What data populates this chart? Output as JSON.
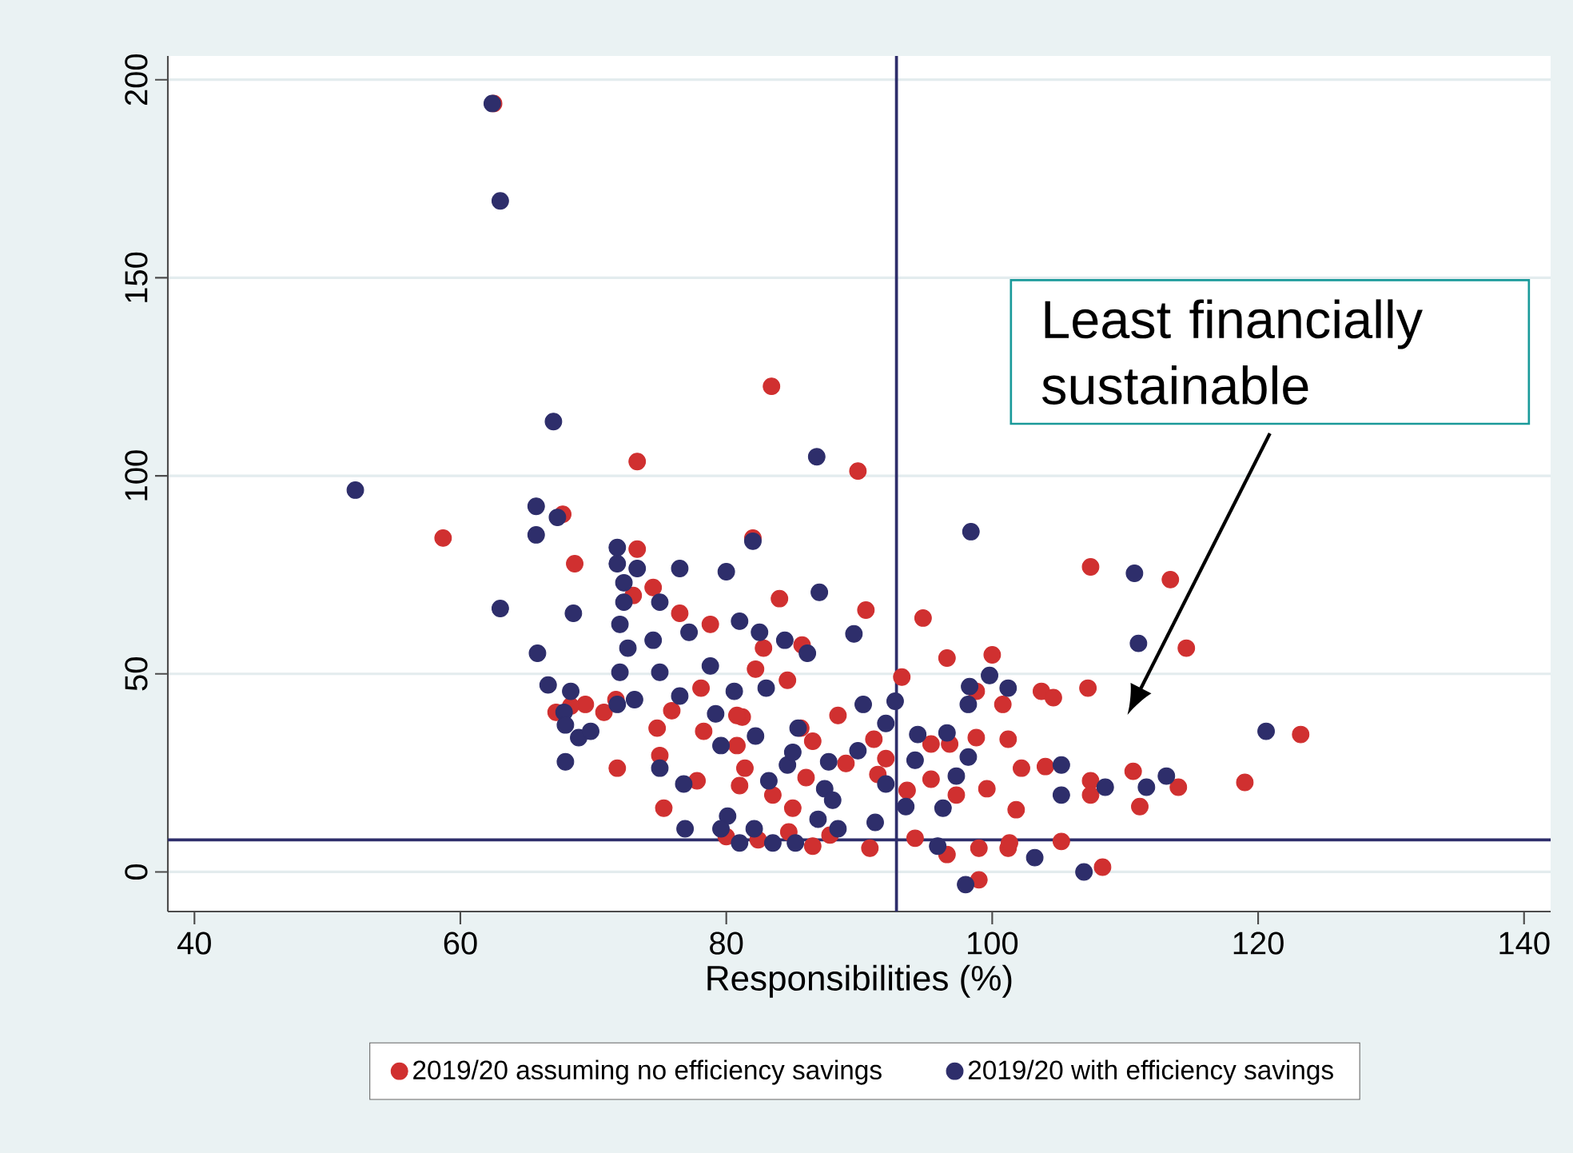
{
  "chart_data": {
    "type": "scatter",
    "xlabel": "Responsibilities (%)",
    "annotations": [
      "Least financially sustainable"
    ],
    "xlim": [
      38,
      142
    ],
    "ylim": [
      -10,
      206
    ],
    "xticks": [
      40,
      60,
      80,
      100,
      120,
      140
    ],
    "yticks": [
      0,
      50,
      100,
      150,
      200
    ],
    "grid": "y",
    "legend": "bottom",
    "ref_lines": [
      {
        "axis": "x",
        "value": 92.8,
        "color": "#2e2e6b"
      },
      {
        "axis": "y",
        "value": 8.1,
        "color": "#2e2e6b"
      }
    ],
    "series": [
      {
        "name": "2019/20 assuming no efficiency savings",
        "color": "#d03030",
        "x": [
          62.5,
          83.4,
          73.3,
          89.9,
          58.7,
          67.7,
          82,
          73.3,
          107.4,
          113.4,
          114.6,
          94.8,
          90.5,
          68.6,
          74.5,
          73,
          76.5,
          78.8,
          84,
          82.8,
          85.7,
          96.6,
          93.2,
          98.8,
          103.7,
          107.2,
          100.8,
          104.6,
          78.1,
          82.2,
          84.6,
          81.2,
          75.9,
          71.7,
          69.4,
          70.8,
          68.3,
          67.2,
          74.8,
          78.3,
          80.8,
          85.6,
          88.4,
          91.1,
          92,
          95.4,
          96.8,
          98.8,
          102.2,
          101.2,
          104,
          107.4,
          107.4,
          110.6,
          114,
          119,
          123.2,
          111.1,
          101.8,
          99.6,
          97.3,
          95.4,
          93.6,
          91.4,
          89,
          86,
          85,
          83.5,
          81,
          77.8,
          75,
          71.8,
          75.3,
          80,
          84.7,
          87.8,
          90.8,
          94.2,
          96.6,
          101.2,
          99,
          105.2,
          108.3,
          99,
          101.3,
          86.5,
          82.4,
          81.4,
          86.5,
          80.8,
          100
        ],
        "values": [
          194,
          122.6,
          103.6,
          101.2,
          84.3,
          90.3,
          84.3,
          81.5,
          77,
          73.8,
          56.5,
          64.1,
          66.1,
          77.8,
          71.8,
          69.8,
          65.3,
          62.5,
          69,
          56.5,
          57.3,
          54,
          49.2,
          45.6,
          45.6,
          46.4,
          42.3,
          44,
          46.4,
          51.2,
          48.4,
          39.1,
          40.7,
          43.5,
          42.3,
          40.3,
          41.9,
          40.3,
          36.3,
          35.5,
          39.5,
          36.3,
          39.5,
          33.5,
          28.6,
          32.3,
          32.3,
          33.9,
          26.2,
          33.5,
          26.6,
          23,
          19.4,
          25.4,
          21.4,
          22.6,
          34.7,
          16.5,
          15.7,
          21,
          19.4,
          23.4,
          20.6,
          24.6,
          27.4,
          23.8,
          16.1,
          19.4,
          21.8,
          23,
          29.4,
          26.2,
          16.1,
          8.9,
          10.1,
          9.3,
          6,
          8.5,
          4.4,
          6,
          6,
          7.7,
          1.2,
          -2,
          7.3,
          6.5,
          8.1,
          26.2,
          33,
          31.9,
          54.8
        ]
      },
      {
        "name": "2019/20 with efficiency savings",
        "color": "#2e2e6b",
        "x": [
          62.4,
          63,
          52.1,
          67,
          65.7,
          67.3,
          65.7,
          63,
          68.5,
          65.8,
          71.8,
          71.8,
          73.3,
          72.3,
          72.3,
          75,
          76.5,
          80,
          82,
          86.8,
          87,
          89.6,
          98.4,
          110.7,
          111,
          120.6,
          72,
          72.6,
          72,
          74.5,
          77.2,
          78.8,
          81,
          82.5,
          84.4,
          86.1,
          83,
          82.2,
          80.6,
          79.2,
          76.5,
          75,
          73.1,
          68.3,
          66.6,
          67.8,
          67.9,
          67.9,
          68.9,
          69.8,
          71.8,
          75,
          76.8,
          76.9,
          80.1,
          82.1,
          83.2,
          84.6,
          85,
          87.7,
          89.9,
          90.3,
          92.7,
          94.4,
          94.2,
          92,
          91.2,
          88.4,
          86.9,
          85.2,
          83.5,
          81,
          79.6,
          87.4,
          98.3,
          99.8,
          101.2,
          98.2,
          96.6,
          98.2,
          97.3,
          96.3,
          95.9,
          103.2,
          98,
          105.2,
          105.2,
          108.5,
          106.9,
          113.1,
          111.6,
          92,
          85.4,
          79.6,
          88,
          93.5
        ],
        "values": [
          194,
          169.4,
          96.4,
          113.7,
          92.3,
          89.5,
          85.1,
          66.5,
          65.3,
          55.2,
          81.9,
          77.8,
          76.6,
          73,
          68.1,
          68.1,
          76.6,
          75.8,
          83.5,
          104.8,
          70.6,
          60.1,
          85.9,
          75.4,
          57.7,
          35.5,
          62.5,
          56.5,
          50.4,
          58.5,
          60.5,
          52,
          63.3,
          60.5,
          58.5,
          55.2,
          46.4,
          34.3,
          45.6,
          39.9,
          44.4,
          50.4,
          43.5,
          45.6,
          47.2,
          40.3,
          37.1,
          27.8,
          33.9,
          35.5,
          42.3,
          26.2,
          22.2,
          10.9,
          14.1,
          10.9,
          23,
          27,
          30.2,
          27.8,
          30.6,
          42.3,
          43.1,
          34.7,
          28.2,
          22.2,
          12.5,
          10.9,
          13.3,
          7.3,
          7.3,
          7.3,
          10.9,
          21,
          46.8,
          49.6,
          46.4,
          42.3,
          35.1,
          29,
          24.2,
          16.1,
          6.5,
          3.6,
          -3.2,
          27,
          19.4,
          21.4,
          0,
          24.2,
          21.4,
          37.5,
          36.3,
          31.9,
          18.1,
          16.5
        ]
      }
    ]
  }
}
